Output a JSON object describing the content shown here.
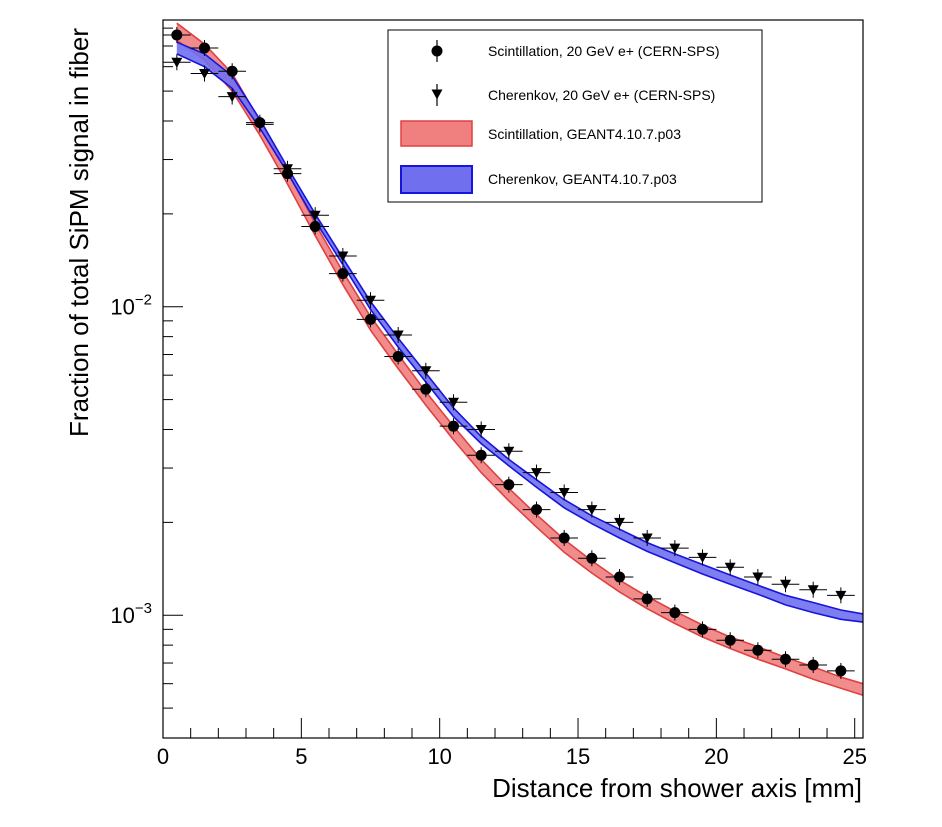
{
  "chart_data": {
    "type": "scatter",
    "xlabel": "Distance from shower axis [mm]",
    "ylabel": "Fraction of total SiPM signal in fiber",
    "xlim": [
      0,
      25.3
    ],
    "ylim": [
      0.0004,
      0.085
    ],
    "yscale": "log",
    "x_ticks": [
      0,
      5,
      10,
      15,
      20,
      25
    ],
    "y_ticks": [
      {
        "value": 0.01,
        "base": "10",
        "exp": "−2"
      },
      {
        "value": 0.001,
        "base": "10",
        "exp": "−3"
      }
    ],
    "legend_position": "top-right",
    "series": [
      {
        "name": "Scintillation, 20 GeV e+ (CERN-SPS)",
        "kind": "points",
        "marker": "circle",
        "color": "#000000",
        "x": [
          0.5,
          1.5,
          2.5,
          3.5,
          4.5,
          5.5,
          6.5,
          7.5,
          8.5,
          9.5,
          10.5,
          11.5,
          12.5,
          13.5,
          14.5,
          15.5,
          16.5,
          17.5,
          18.5,
          19.5,
          20.5,
          21.5,
          22.5,
          23.5,
          24.5
        ],
        "y": [
          0.076,
          0.069,
          0.058,
          0.0395,
          0.027,
          0.0182,
          0.0128,
          0.0091,
          0.0069,
          0.0054,
          0.0041,
          0.0033,
          0.00265,
          0.0022,
          0.00178,
          0.00153,
          0.00133,
          0.00113,
          0.00102,
          0.0009,
          0.00083,
          0.00077,
          0.00072,
          0.00069,
          0.00066
        ]
      },
      {
        "name": "Cherenkov, 20 GeV e+ (CERN-SPS)",
        "kind": "points",
        "marker": "triangle-down",
        "color": "#000000",
        "x": [
          0.5,
          1.5,
          2.5,
          3.5,
          4.5,
          5.5,
          6.5,
          7.5,
          8.5,
          9.5,
          10.5,
          11.5,
          12.5,
          13.5,
          14.5,
          15.5,
          16.5,
          17.5,
          18.5,
          19.5,
          20.5,
          21.5,
          22.5,
          23.5,
          24.5
        ],
        "y": [
          0.062,
          0.057,
          0.048,
          0.039,
          0.028,
          0.0198,
          0.0146,
          0.0105,
          0.0081,
          0.0062,
          0.0049,
          0.004,
          0.0034,
          0.0029,
          0.0025,
          0.0022,
          0.002,
          0.00178,
          0.00165,
          0.00154,
          0.00143,
          0.00133,
          0.00126,
          0.00121,
          0.00116
        ]
      },
      {
        "name": "Scintillation, GEANT4.10.7.p03",
        "kind": "band",
        "color": "#f08080",
        "edge": "#e04040",
        "x": [
          0.5,
          1.5,
          2.5,
          3.5,
          4.5,
          5.5,
          6.5,
          7.5,
          8.5,
          9.5,
          10.5,
          11.5,
          12.5,
          13.5,
          14.5,
          15.5,
          16.5,
          17.5,
          18.5,
          19.5,
          20.5,
          21.5,
          22.5,
          23.5,
          24.5,
          25.3
        ],
        "low": [
          0.073,
          0.063,
          0.05,
          0.036,
          0.025,
          0.017,
          0.0118,
          0.0084,
          0.0063,
          0.0048,
          0.0037,
          0.0029,
          0.00235,
          0.00193,
          0.0016,
          0.00137,
          0.00119,
          0.00105,
          0.00094,
          0.00085,
          0.00078,
          0.00072,
          0.00067,
          0.00062,
          0.00058,
          0.00055
        ],
        "high": [
          0.083,
          0.071,
          0.057,
          0.04,
          0.0275,
          0.0186,
          0.013,
          0.0093,
          0.007,
          0.0053,
          0.0041,
          0.0032,
          0.00258,
          0.00212,
          0.00176,
          0.0015,
          0.0013,
          0.00115,
          0.00103,
          0.00093,
          0.00085,
          0.00079,
          0.00073,
          0.00068,
          0.00063,
          0.0006
        ]
      },
      {
        "name": "Cherenkov, GEANT4.10.7.p03",
        "kind": "band",
        "color": "#7070ee",
        "edge": "#1515dd",
        "x": [
          0.5,
          1.5,
          2.5,
          3.5,
          4.5,
          5.5,
          6.5,
          7.5,
          8.5,
          9.5,
          10.5,
          11.5,
          12.5,
          13.5,
          14.5,
          15.5,
          16.5,
          17.5,
          18.5,
          19.5,
          20.5,
          21.5,
          22.5,
          23.5,
          24.5,
          25.3
        ],
        "low": [
          0.066,
          0.06,
          0.051,
          0.038,
          0.0272,
          0.019,
          0.0137,
          0.0098,
          0.0074,
          0.0057,
          0.0044,
          0.0036,
          0.00305,
          0.0026,
          0.00223,
          0.00198,
          0.00178,
          0.00161,
          0.00148,
          0.00136,
          0.00126,
          0.00117,
          0.00108,
          0.00102,
          0.00097,
          0.00095
        ],
        "high": [
          0.072,
          0.066,
          0.056,
          0.0405,
          0.0283,
          0.02,
          0.0144,
          0.0104,
          0.0079,
          0.0061,
          0.0047,
          0.0038,
          0.0032,
          0.00275,
          0.00237,
          0.0021,
          0.0019,
          0.00172,
          0.00158,
          0.00146,
          0.00135,
          0.00125,
          0.00116,
          0.0011,
          0.00104,
          0.00101
        ]
      }
    ]
  }
}
